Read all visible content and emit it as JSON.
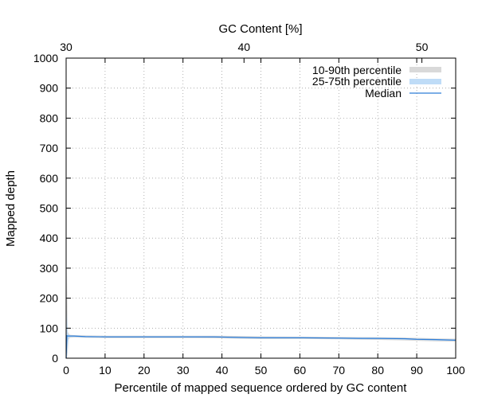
{
  "chart_data": {
    "type": "line",
    "title": "",
    "xlabel": "Percentile of mapped sequence ordered by GC content",
    "ylabel": "Mapped depth",
    "x2label": "GC Content [%]",
    "xlim": [
      0,
      100
    ],
    "ylim": [
      0,
      1000
    ],
    "x2lim": [
      30,
      51.9
    ],
    "xticks": [
      0,
      10,
      20,
      30,
      40,
      50,
      60,
      70,
      80,
      90,
      100
    ],
    "yticks": [
      0,
      100,
      200,
      300,
      400,
      500,
      600,
      700,
      800,
      900,
      1000
    ],
    "x2ticks": [
      30,
      40,
      50
    ],
    "grid": true,
    "legend_position": "top-right",
    "colors": {
      "p10_90": "#d9d9d9",
      "p25_75": "#bfdcf7",
      "median": "#2f7ed8"
    },
    "series": [
      {
        "name": "10-90th percentile",
        "kind": "band",
        "x": [
          0,
          0.2,
          0.4,
          0.6,
          0.8,
          1.0,
          2,
          5,
          10,
          20,
          30,
          40,
          50,
          60,
          70,
          80,
          90,
          95,
          100
        ],
        "lower": [
          0,
          0,
          20,
          60,
          66,
          68,
          69,
          68,
          67,
          67,
          67,
          66,
          64,
          64,
          63,
          61,
          58,
          56,
          55
        ],
        "upper": [
          0,
          300,
          90,
          83,
          80,
          78,
          77,
          76,
          75,
          75,
          75,
          75,
          73,
          72,
          71,
          70,
          68,
          66,
          65
        ]
      },
      {
        "name": "25-75th percentile",
        "kind": "band",
        "x": [
          0,
          0.2,
          0.4,
          0.6,
          0.8,
          1.0,
          2,
          5,
          10,
          20,
          30,
          40,
          50,
          60,
          70,
          80,
          90,
          95,
          100
        ],
        "lower": [
          0,
          0,
          40,
          68,
          70,
          71,
          71,
          70,
          70,
          70,
          70,
          69,
          67,
          67,
          66,
          64,
          61,
          59,
          58
        ],
        "upper": [
          0,
          150,
          85,
          79,
          77,
          76,
          75,
          74,
          73,
          73,
          73,
          72,
          70,
          70,
          69,
          68,
          65,
          63,
          62
        ]
      },
      {
        "name": "Median",
        "kind": "line",
        "x": [
          0,
          0.2,
          0.4,
          0.6,
          1,
          2,
          5,
          10,
          20,
          30,
          38,
          45,
          50,
          60,
          70,
          75,
          80,
          87,
          90,
          95,
          100
        ],
        "y": [
          0,
          75,
          74,
          74,
          74,
          74,
          72,
          71,
          71,
          71,
          71,
          69,
          68,
          68,
          67,
          66,
          66,
          65,
          63,
          62,
          60
        ]
      }
    ]
  }
}
